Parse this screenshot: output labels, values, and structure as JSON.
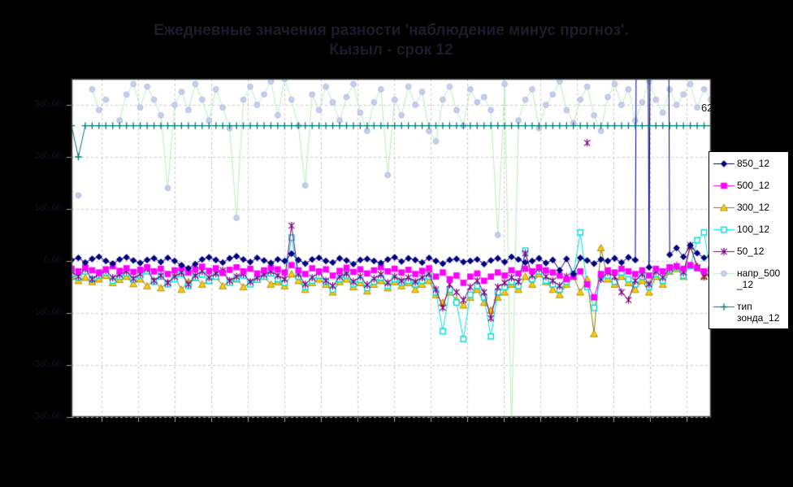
{
  "title": {
    "line1": "Ежедневные значения разности 'наблюдение минус прогноз'.",
    "line2": "Кызыл - срок 12"
  },
  "annotation": {
    "text": "62"
  },
  "axis": {
    "y_tick_values": [
      300,
      200,
      100,
      0,
      -100,
      -200,
      -300
    ],
    "y_tick_labels": [
      "300,00",
      "200,00",
      "100,00",
      "0,00",
      "-100,00",
      "-200,00",
      "-300,00"
    ]
  },
  "legend": {
    "items": [
      {
        "label": "850_12",
        "lines": "850_12",
        "marker": "diamond",
        "marker_color": "#000080",
        "line_color": "#000080"
      },
      {
        "label": "500_12",
        "lines": "500_12",
        "marker": "square",
        "marker_color": "#FF00FF",
        "line_color": "#FF00FF"
      },
      {
        "label": "300_12",
        "lines": "300_12",
        "marker": "triangle",
        "marker_color": "#FFCC00",
        "line_color": "#808000"
      },
      {
        "label": "100_12",
        "lines": "100_12",
        "marker": "open-square",
        "marker_color": "#00DCDC",
        "line_color": "#00E5E5"
      },
      {
        "label": "50_12",
        "lines": "50_12",
        "marker": "star",
        "marker_color": "#800080",
        "line_color": "#800080"
      },
      {
        "label": "напр_500_12",
        "lines": "напр_500\n_12",
        "marker": "dot",
        "marker_color": "#C6CEEC",
        "line_color": "#BBEEBB"
      },
      {
        "label": "тип зонда_12",
        "lines": "тип\nзонда_12",
        "marker": "plus",
        "marker_color": "#007878",
        "line_color": "#007878"
      }
    ]
  },
  "chart_data": {
    "type": "line",
    "title": "Ежедневные значения разности 'наблюдение минус прогноз'. Кызыл - срок 12",
    "ylim": [
      -300,
      350
    ],
    "grid": true,
    "legend_position": "right",
    "n_points": 94,
    "draw_order": [
      "напр_500_12",
      "300_12",
      "100_12",
      "50_12",
      "500_12",
      "850_12",
      "тип зонда_12"
    ],
    "series": [
      {
        "name": "850_12",
        "marker": "diamond",
        "line_color": "#000080",
        "marker_color": "#000080",
        "values": [
          2,
          6,
          -3,
          4,
          8,
          0,
          -5,
          3,
          7,
          1,
          -4,
          2,
          5,
          -2,
          6,
          0,
          -8,
          -14,
          -6,
          3,
          7,
          2,
          -3,
          5,
          9,
          3,
          -2,
          6,
          1,
          -4,
          3,
          0,
          14,
          2,
          -5,
          3,
          6,
          0,
          -3,
          5,
          1,
          -6,
          2,
          4,
          0,
          -4,
          3,
          7,
          -1,
          5,
          2,
          -3,
          6,
          0,
          -5,
          2,
          4,
          -2,
          0,
          3,
          -6,
          1,
          5,
          -2,
          8,
          3,
          -3,
          0,
          5,
          -4,
          2,
          -18,
          4,
          -25,
          6,
          1,
          -5,
          3,
          0,
          5,
          -3,
          7,
          2,
          3000,
          -12,
          3000,
          3000,
          12,
          25,
          8,
          30,
          15,
          6,
          10
        ]
      },
      {
        "name": "500_12",
        "marker": "square",
        "line_color": "#FF00FF",
        "marker_color": "#FF00FF",
        "values": [
          -15,
          -20,
          -12,
          -18,
          -22,
          -16,
          -10,
          -19,
          -14,
          -21,
          -17,
          -12,
          -20,
          -15,
          -25,
          -18,
          -13,
          -22,
          -16,
          -11,
          -19,
          -14,
          -23,
          -17,
          -12,
          -20,
          -15,
          -24,
          -18,
          -13,
          -16,
          -22,
          -8,
          -18,
          -25,
          -14,
          -20,
          -16,
          -28,
          -19,
          -13,
          -21,
          -16,
          -24,
          -18,
          -12,
          -20,
          -15,
          -22,
          -17,
          -25,
          -19,
          -14,
          -30,
          -22,
          -35,
          -28,
          -42,
          -30,
          -24,
          -38,
          -30,
          -22,
          -28,
          -18,
          -24,
          -15,
          -20,
          -12,
          -18,
          -22,
          -28,
          -35,
          -30,
          -20,
          -45,
          -70,
          -25,
          -18,
          -22,
          -15,
          -20,
          -25,
          -18,
          -28,
          -15,
          -20,
          -12,
          -10,
          -15,
          -8,
          -14,
          -20,
          -16
        ]
      },
      {
        "name": "300_12",
        "marker": "triangle",
        "line_color": "#808000",
        "marker_color": "#FFCC00",
        "values": [
          -30,
          -38,
          -32,
          -40,
          -35,
          -28,
          -42,
          -36,
          -30,
          -44,
          -35,
          -48,
          -38,
          -52,
          -42,
          -30,
          -55,
          -40,
          -32,
          -45,
          -38,
          -30,
          -48,
          -40,
          -35,
          -50,
          -42,
          -36,
          -30,
          -45,
          -40,
          -48,
          -25,
          -38,
          -55,
          -42,
          -35,
          -45,
          -60,
          -40,
          -35,
          -50,
          -42,
          -58,
          -45,
          -38,
          -52,
          -40,
          -48,
          -42,
          -55,
          -45,
          -38,
          -65,
          -80,
          -60,
          -75,
          -85,
          -70,
          -55,
          -80,
          -95,
          -70,
          -60,
          -45,
          -55,
          -30,
          -45,
          -25,
          -40,
          -55,
          -65,
          -45,
          -30,
          -60,
          -35,
          -140,
          25,
          -35,
          -45,
          -30,
          -42,
          -55,
          -38,
          -60,
          -30,
          -45,
          -20,
          -15,
          -30,
          28,
          -10,
          -30,
          -20
        ]
      },
      {
        "name": "100_12",
        "marker": "open-square",
        "line_color": "#00E5E5",
        "marker_color": "#00DCDC",
        "values": [
          -25,
          -32,
          -20,
          -35,
          -28,
          -22,
          -38,
          -30,
          -24,
          -36,
          -28,
          -20,
          -40,
          -30,
          -45,
          -35,
          -25,
          -48,
          -32,
          -26,
          -38,
          -30,
          -22,
          -42,
          -34,
          -28,
          -45,
          -36,
          -30,
          -24,
          -35,
          -42,
          45,
          -30,
          -50,
          -38,
          -28,
          -40,
          -55,
          -35,
          -28,
          -45,
          -36,
          -52,
          -40,
          -32,
          -48,
          -35,
          -42,
          -38,
          -45,
          -38,
          -30,
          -60,
          -135,
          -55,
          -80,
          -150,
          -65,
          -48,
          -70,
          -145,
          -60,
          -50,
          -40,
          -48,
          20,
          -35,
          -20,
          -38,
          -45,
          -55,
          -40,
          -25,
          55,
          -50,
          -90,
          -30,
          -28,
          -40,
          -22,
          -35,
          -45,
          -30,
          -50,
          -25,
          -38,
          -18,
          -12,
          -28,
          -10,
          40,
          55,
          -25
        ]
      },
      {
        "name": "50_12",
        "marker": "star",
        "line_color": "#800080",
        "marker_color": "#800080",
        "values": [
          -20,
          -30,
          -15,
          -35,
          -25,
          -18,
          -32,
          -26,
          -20,
          -34,
          -25,
          -15,
          -38,
          -28,
          -42,
          -30,
          -22,
          -45,
          -28,
          -20,
          -32,
          -24,
          -18,
          -38,
          -30,
          -25,
          -40,
          -32,
          -26,
          -20,
          -28,
          -35,
          68,
          -25,
          -45,
          -32,
          -22,
          -38,
          -48,
          -30,
          -24,
          -40,
          -30,
          -46,
          -34,
          -26,
          -42,
          -30,
          -38,
          -32,
          -40,
          -32,
          -25,
          -55,
          -90,
          -45,
          -60,
          -75,
          -50,
          -38,
          -60,
          -110,
          -50,
          -42,
          -32,
          -40,
          15,
          -28,
          -15,
          -30,
          -38,
          -48,
          -30,
          null,
          null,
          227,
          null,
          -35,
          -22,
          -30,
          -60,
          -75,
          -38,
          -25,
          -45,
          -20,
          -32,
          -15,
          -10,
          -22,
          30,
          -12,
          -30,
          -24
        ]
      },
      {
        "name": "напр_500_12",
        "marker": "dot",
        "line_color": "#BBEEBB",
        "marker_color": "#C6CEEC",
        "values": [
          null,
          126,
          null,
          330,
          290,
          310,
          null,
          270,
          320,
          340,
          295,
          335,
          310,
          280,
          140,
          300,
          325,
          290,
          340,
          310,
          270,
          330,
          295,
          255,
          83,
          310,
          335,
          300,
          320,
          345,
          280,
          350,
          310,
          260,
          145,
          320,
          290,
          335,
          305,
          270,
          315,
          340,
          285,
          250,
          305,
          330,
          165,
          310,
          280,
          335,
          300,
          325,
          250,
          230,
          310,
          335,
          290,
          260,
          330,
          305,
          315,
          290,
          50,
          340,
          -325,
          270,
          310,
          330,
          255,
          300,
          320,
          345,
          290,
          265,
          310,
          335,
          280,
          250,
          315,
          340,
          300,
          330,
          270,
          305,
          345,
          310,
          285,
          330,
          300,
          320,
          340,
          295,
          330,
          310
        ]
      },
      {
        "name": "тип зонда_12",
        "marker": "plus",
        "line_color": "#007878",
        "marker_color": "#007878",
        "values": [
          260,
          200,
          260,
          260,
          260,
          260,
          260,
          260,
          260,
          260,
          260,
          260,
          260,
          260,
          260,
          260,
          260,
          260,
          260,
          260,
          260,
          260,
          260,
          260,
          260,
          260,
          260,
          260,
          260,
          260,
          260,
          260,
          260,
          260,
          260,
          260,
          260,
          260,
          260,
          260,
          260,
          260,
          260,
          260,
          260,
          260,
          260,
          260,
          260,
          260,
          260,
          260,
          260,
          260,
          260,
          260,
          260,
          260,
          260,
          260,
          260,
          260,
          260,
          260,
          260,
          260,
          260,
          260,
          260,
          260,
          260,
          260,
          260,
          260,
          260,
          260,
          260,
          260,
          260,
          260,
          260,
          260,
          260,
          260,
          260,
          260,
          260,
          260,
          260,
          260,
          260,
          260,
          260,
          260
        ]
      }
    ]
  }
}
